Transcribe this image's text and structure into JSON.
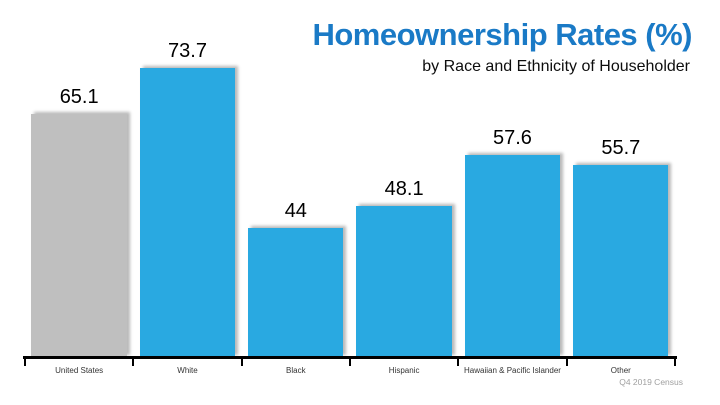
{
  "header": {
    "title": "Homeownership Rates (%)",
    "subtitle": "by Race and Ethnicity of Householder"
  },
  "footer": {
    "source": "Q4 2019 Census"
  },
  "colors": {
    "title_blue": "#1A7AC6",
    "bar_blue": "#29A9E1",
    "bar_gray": "#BFBFBF",
    "axis_black": "#000000",
    "source_gray": "#A0A0A0"
  },
  "chart_data": {
    "type": "bar",
    "title": "Homeownership Rates (%)",
    "subtitle": "by Race and Ethnicity of Householder",
    "source": "Q4 2019 Census",
    "categories": [
      "United States",
      "White",
      "Black",
      "Hispanic",
      "Hawaiian & Pacific Islander",
      "Other"
    ],
    "values": [
      65.1,
      73.7,
      44,
      48.1,
      57.6,
      55.7
    ],
    "value_labels": [
      "65.1",
      "73.7",
      "44",
      "48.1",
      "57.6",
      "55.7"
    ],
    "bar_colors": [
      "#BFBFBF",
      "#29A9E1",
      "#29A9E1",
      "#29A9E1",
      "#29A9E1",
      "#29A9E1"
    ],
    "xlabel": "",
    "ylabel": "",
    "ylim": [
      20,
      80
    ],
    "grid": false,
    "legend": false
  }
}
